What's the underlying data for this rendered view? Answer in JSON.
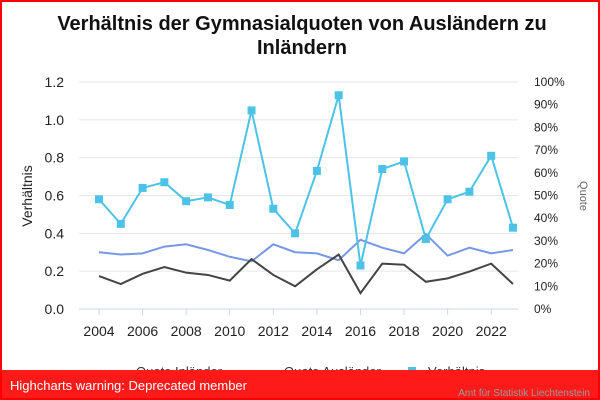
{
  "warning": {
    "text": "Highcharts warning: Deprecated member"
  },
  "credit": {
    "text": "Amt für Statistik Liechtenstein"
  },
  "chart_data": {
    "type": "line",
    "title": "Verhältnis der Gymnasialquoten von Ausländern zu Inländern",
    "ylabel": "Verhältnis",
    "y2label": "Quote",
    "ylim": [
      0,
      1.2
    ],
    "y2lim": [
      0,
      100
    ],
    "yticks": [
      "0.0",
      "0.2",
      "0.4",
      "0.6",
      "0.8",
      "1.0",
      "1.2"
    ],
    "y2ticks": [
      "0%",
      "10%",
      "20%",
      "30%",
      "40%",
      "50%",
      "60%",
      "70%",
      "80%",
      "90%",
      "100%"
    ],
    "xticks": [
      "2004",
      "2006",
      "2008",
      "2010",
      "2012",
      "2014",
      "2016",
      "2018",
      "2020",
      "2022"
    ],
    "grid": true,
    "legend_position": "bottom",
    "x": [
      2004,
      2005,
      2006,
      2007,
      2008,
      2009,
      2010,
      2011,
      2012,
      2013,
      2014,
      2015,
      2016,
      2017,
      2018,
      2019,
      2020,
      2021,
      2022,
      2023
    ],
    "series": [
      {
        "name": "Quote Inländer",
        "axis": "right",
        "color": "#7798e6",
        "values": [
          25,
          24,
          24.5,
          27.5,
          28.5,
          26,
          23,
          21,
          28.5,
          25,
          24.5,
          21.5,
          30.5,
          27,
          24.5,
          33,
          23.5,
          27,
          24.5,
          26
        ]
      },
      {
        "name": "Quote Ausländer",
        "axis": "right",
        "color": "#444444",
        "values": [
          14.5,
          11,
          15.5,
          18.5,
          16,
          15,
          12.5,
          22,
          15,
          10,
          17.5,
          24,
          7,
          20,
          19.5,
          12,
          13.5,
          16.5,
          20,
          11
        ]
      },
      {
        "name": "Verhältnis",
        "axis": "left",
        "color": "#4cc3e6",
        "values": [
          0.58,
          0.45,
          0.64,
          0.67,
          0.57,
          0.59,
          0.55,
          1.05,
          0.53,
          0.4,
          0.73,
          1.13,
          0.23,
          0.74,
          0.78,
          0.37,
          0.58,
          0.62,
          0.81,
          0.43
        ]
      }
    ]
  }
}
